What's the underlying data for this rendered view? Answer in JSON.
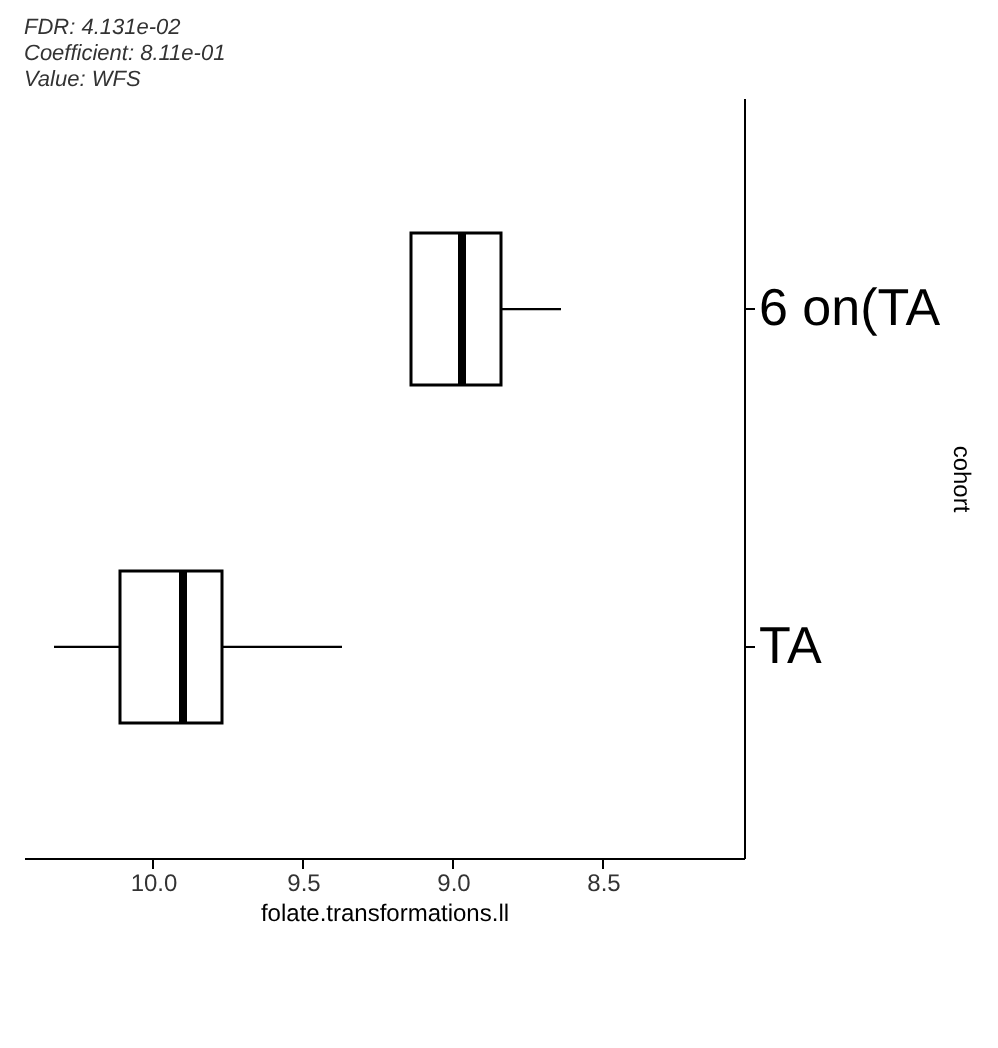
{
  "chart_data": {
    "type": "box",
    "orientation": "horizontal",
    "xlabel": "folate.transformations.ll",
    "ylabel": "cohort",
    "annotations": [
      "FDR: 4.131e-02",
      "Coefficient: 8.11e-01",
      "Value: WFS"
    ],
    "categories": [
      "6 on(TA",
      "TA"
    ],
    "boxes": [
      {
        "low": 8.64,
        "q1": 8.84,
        "median": 8.97,
        "q3": 9.14,
        "high": 9.14
      },
      {
        "low": 9.37,
        "q1": 9.77,
        "median": 9.9,
        "q3": 10.11,
        "high": 10.33
      }
    ],
    "xlim": [
      10.43,
      8.03
    ],
    "xticks": [
      {
        "value": 10,
        "label": "10.0"
      },
      9.5,
      {
        "value": 9,
        "label": "9.0"
      },
      8.5
    ]
  }
}
